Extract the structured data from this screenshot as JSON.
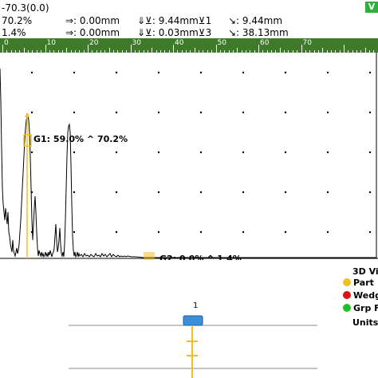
{
  "readout": {
    "row1_c1": "-70.3(0.0)",
    "row2_c1": "70.2%",
    "row2_c2": "⇒: 0.00mm",
    "row2_c3": "⇓⊻: 9.44mm⊻1",
    "row2_c4": "↘: 9.44mm",
    "row3_c1": "1.4%",
    "row3_c2": "⇒: 0.00mm",
    "row3_c3": "⇓⊻: 0.03mm⊻3",
    "row3_c4": "↘: 38.13mm",
    "badge": "V"
  },
  "ruler": {
    "labels": [
      "0",
      "10",
      "20",
      "30",
      "40",
      "50",
      "60",
      "70"
    ],
    "color": "#3f7a2a"
  },
  "ascan": {
    "gate1_label": "G1: 59.0% ^ 70.2%",
    "gate2_label": "G2: 0.0% ^ 1.4%",
    "gate_color": "#f0c020",
    "trace_color": "#000000"
  },
  "legend": {
    "title": "3D Vi",
    "items": [
      {
        "label": "Part",
        "color": "#f0c020"
      },
      {
        "label": "Wedg",
        "color": "#e01010"
      },
      {
        "label": "Grp F",
        "color": "#20c020"
      }
    ],
    "units": "Units"
  },
  "bottom": {
    "index_label": "1"
  }
}
